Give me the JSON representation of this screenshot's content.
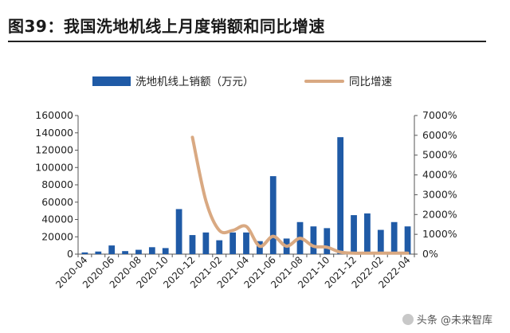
{
  "header": {
    "title": "图39：我国洗地机线上月度销额和同比增速"
  },
  "watermark": {
    "text": "头条 @未来智库"
  },
  "chart_data": {
    "type": "bar+line",
    "categories": [
      "2020-04",
      "2020-05",
      "2020-06",
      "2020-07",
      "2020-08",
      "2020-09",
      "2020-10",
      "2020-11",
      "2020-12",
      "2021-01",
      "2021-02",
      "2021-03",
      "2021-04",
      "2021-05",
      "2021-06",
      "2021-07",
      "2021-08",
      "2021-09",
      "2021-10",
      "2021-11",
      "2021-12",
      "2022-01",
      "2022-02",
      "2022-03",
      "2022-04"
    ],
    "x_tick_labels": [
      "2020-04",
      "2020-06",
      "2020-08",
      "2020-10",
      "2020-12",
      "2021-02",
      "2021-04",
      "2021-06",
      "2021-08",
      "2021-10",
      "2021-12",
      "2022-02",
      "2022-04"
    ],
    "series": [
      {
        "name": "洗地机线上销额（万元）",
        "type": "bar",
        "axis": "left",
        "color": "#1f5aa6",
        "values": [
          2000,
          3000,
          10000,
          3500,
          5000,
          8000,
          7000,
          52000,
          22000,
          25000,
          16000,
          25000,
          25000,
          15000,
          90000,
          18000,
          37000,
          32000,
          30000,
          135000,
          45000,
          47000,
          28000,
          37000,
          32000
        ]
      },
      {
        "name": "同比增速",
        "type": "line",
        "axis": "right",
        "color": "#d9a982",
        "values": [
          null,
          null,
          null,
          null,
          null,
          null,
          null,
          null,
          5900,
          2700,
          1200,
          1200,
          1400,
          400,
          900,
          400,
          800,
          400,
          350,
          100,
          50,
          50,
          50,
          50,
          50
        ]
      }
    ],
    "y_left": {
      "min": 0,
      "max": 160000,
      "ticks": [
        "0",
        "20000",
        "40000",
        "60000",
        "80000",
        "100000",
        "120000",
        "140000",
        "160000"
      ]
    },
    "y_right": {
      "min": 0,
      "max": 7000,
      "ticks": [
        "0%",
        "1000%",
        "2000%",
        "3000%",
        "4000%",
        "5000%",
        "6000%",
        "7000%"
      ]
    },
    "legend_position": "top",
    "grid": false
  }
}
